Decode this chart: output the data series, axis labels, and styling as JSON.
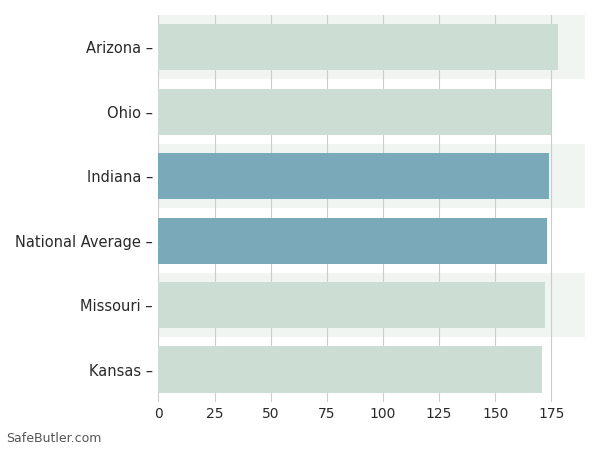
{
  "categories": [
    "Arizona –",
    "Ohio –",
    "Indiana –",
    "National Average –",
    "Missouri –",
    "Kansas –"
  ],
  "values": [
    178,
    175,
    174,
    173,
    172,
    171
  ],
  "bar_colors": [
    "#ccddd4",
    "#ccddd4",
    "#7aaab9",
    "#7aaab9",
    "#ccddd4",
    "#ccddd4"
  ],
  "row_bg_colors": [
    "#f0f5f2",
    "#ffffff",
    "#f0f5f2",
    "#ffffff",
    "#f0f5f2",
    "#ffffff"
  ],
  "xlim": [
    0,
    190
  ],
  "xticks": [
    0,
    25,
    50,
    75,
    100,
    125,
    150,
    175
  ],
  "bar_height": 0.72,
  "background_color": "#ffffff",
  "grid_color": "#cccccc",
  "text_color": "#2a2a2a",
  "watermark": "SafeButler.com",
  "figsize": [
    6.0,
    4.5
  ],
  "dpi": 100
}
